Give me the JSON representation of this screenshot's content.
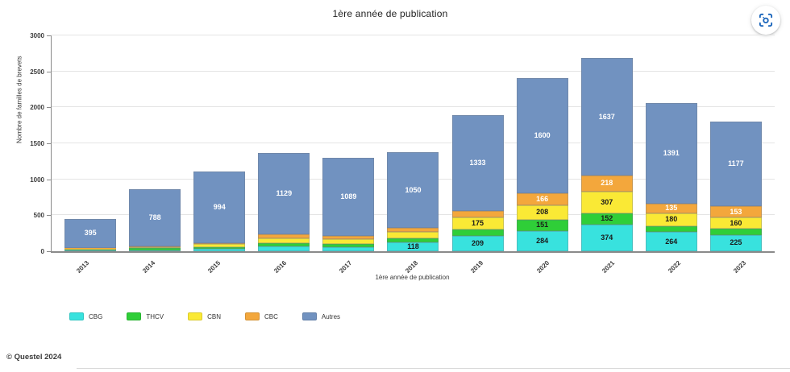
{
  "icons": {
    "visual_search": "camera-in-viewfinder"
  },
  "chart_data": {
    "type": "bar",
    "stacked": true,
    "title": "1ère année de publication",
    "xlabel": "1ère année de publication",
    "ylabel": "Nombre de familles de brevets",
    "ylim": [
      0,
      3000
    ],
    "yticks": [
      0,
      500,
      1000,
      1500,
      2000,
      2500,
      3000
    ],
    "grid": true,
    "legend_position": "bottom-left",
    "categories": [
      "2013",
      "2014",
      "2015",
      "2016",
      "2017",
      "2018",
      "2019",
      "2020",
      "2021",
      "2022",
      "2023"
    ],
    "series": [
      {
        "name": "CBG",
        "color": "#38E2DE",
        "label_color": "#1a1a1a",
        "values": [
          8,
          15,
          30,
          67,
          60,
          118,
          209,
          284,
          374,
          264,
          225
        ],
        "value_labels": [
          null,
          null,
          null,
          null,
          null,
          "118",
          "209",
          "284",
          "374",
          "264",
          "225"
        ]
      },
      {
        "name": "THCV",
        "color": "#2FCE38",
        "label_color": "#1a1a1a",
        "values": [
          18,
          25,
          30,
          45,
          42,
          58,
          90,
          151,
          152,
          87,
          85
        ],
        "value_labels": [
          null,
          null,
          null,
          null,
          null,
          null,
          null,
          "151",
          "152",
          null,
          null
        ]
      },
      {
        "name": "CBN",
        "color": "#FAE935",
        "label_color": "#1a1a1a",
        "values": [
          18,
          22,
          42,
          67,
          62,
          95,
          175,
          208,
          307,
          180,
          160
        ],
        "value_labels": [
          null,
          null,
          null,
          null,
          null,
          null,
          "175",
          "208",
          "307",
          "180",
          "160"
        ]
      },
      {
        "name": "CBC",
        "color": "#F3A73C",
        "label_color": "#ffffff",
        "values": [
          6,
          8,
          12,
          56,
          47,
          55,
          85,
          166,
          218,
          135,
          153
        ],
        "value_labels": [
          null,
          null,
          null,
          null,
          null,
          null,
          null,
          "166",
          "218",
          "135",
          "153"
        ]
      },
      {
        "name": "Autres",
        "color": "#7192C0",
        "label_color": "#ffffff",
        "values": [
          395,
          788,
          994,
          1129,
          1089,
          1050,
          1333,
          1600,
          1637,
          1391,
          1177
        ],
        "value_labels": [
          "395",
          "788",
          "994",
          "1129",
          "1089",
          "1050",
          "1333",
          "1600",
          "1637",
          "1391",
          "1177"
        ]
      }
    ]
  },
  "footer": {
    "copyright": "© Questel 2024"
  }
}
